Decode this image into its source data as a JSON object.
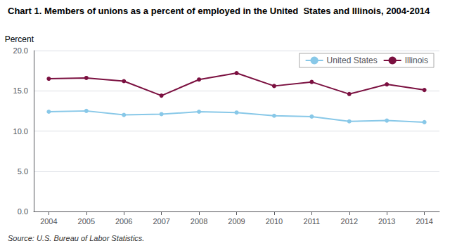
{
  "chart_data": {
    "type": "line",
    "title": "Chart 1. Members of unions as a percent of employed in the United  States and Illinois, 2004-2014",
    "ylabel": "Percent",
    "source": "Source: U.S. Bureau of Labor Statistics.",
    "x": [
      2004,
      2005,
      2006,
      2007,
      2008,
      2009,
      2010,
      2011,
      2012,
      2013,
      2014
    ],
    "series": [
      {
        "name": "United States",
        "color": "#88C8E8",
        "values": [
          12.4,
          12.5,
          12.0,
          12.1,
          12.4,
          12.3,
          11.9,
          11.8,
          11.2,
          11.3,
          11.1
        ]
      },
      {
        "name": "Illinois",
        "color": "#7B1040",
        "values": [
          16.5,
          16.6,
          16.2,
          14.4,
          16.4,
          17.2,
          15.6,
          16.1,
          14.6,
          15.8,
          15.1
        ]
      }
    ],
    "xlim": [
      2003.6,
      2014.4
    ],
    "xticks": [
      2004,
      2005,
      2006,
      2007,
      2008,
      2009,
      2010,
      2011,
      2012,
      2013,
      2014
    ],
    "ylim": [
      0,
      20.0
    ],
    "yticks": [
      {
        "value": 0,
        "label": "0.0"
      },
      {
        "value": 5,
        "label": "5.0"
      },
      {
        "value": 10,
        "label": "10.0"
      },
      {
        "value": 15,
        "label": "15.0"
      },
      {
        "value": 20,
        "label": "20.0"
      }
    ],
    "grid": true,
    "legend": "upper right",
    "marker": "circle"
  }
}
